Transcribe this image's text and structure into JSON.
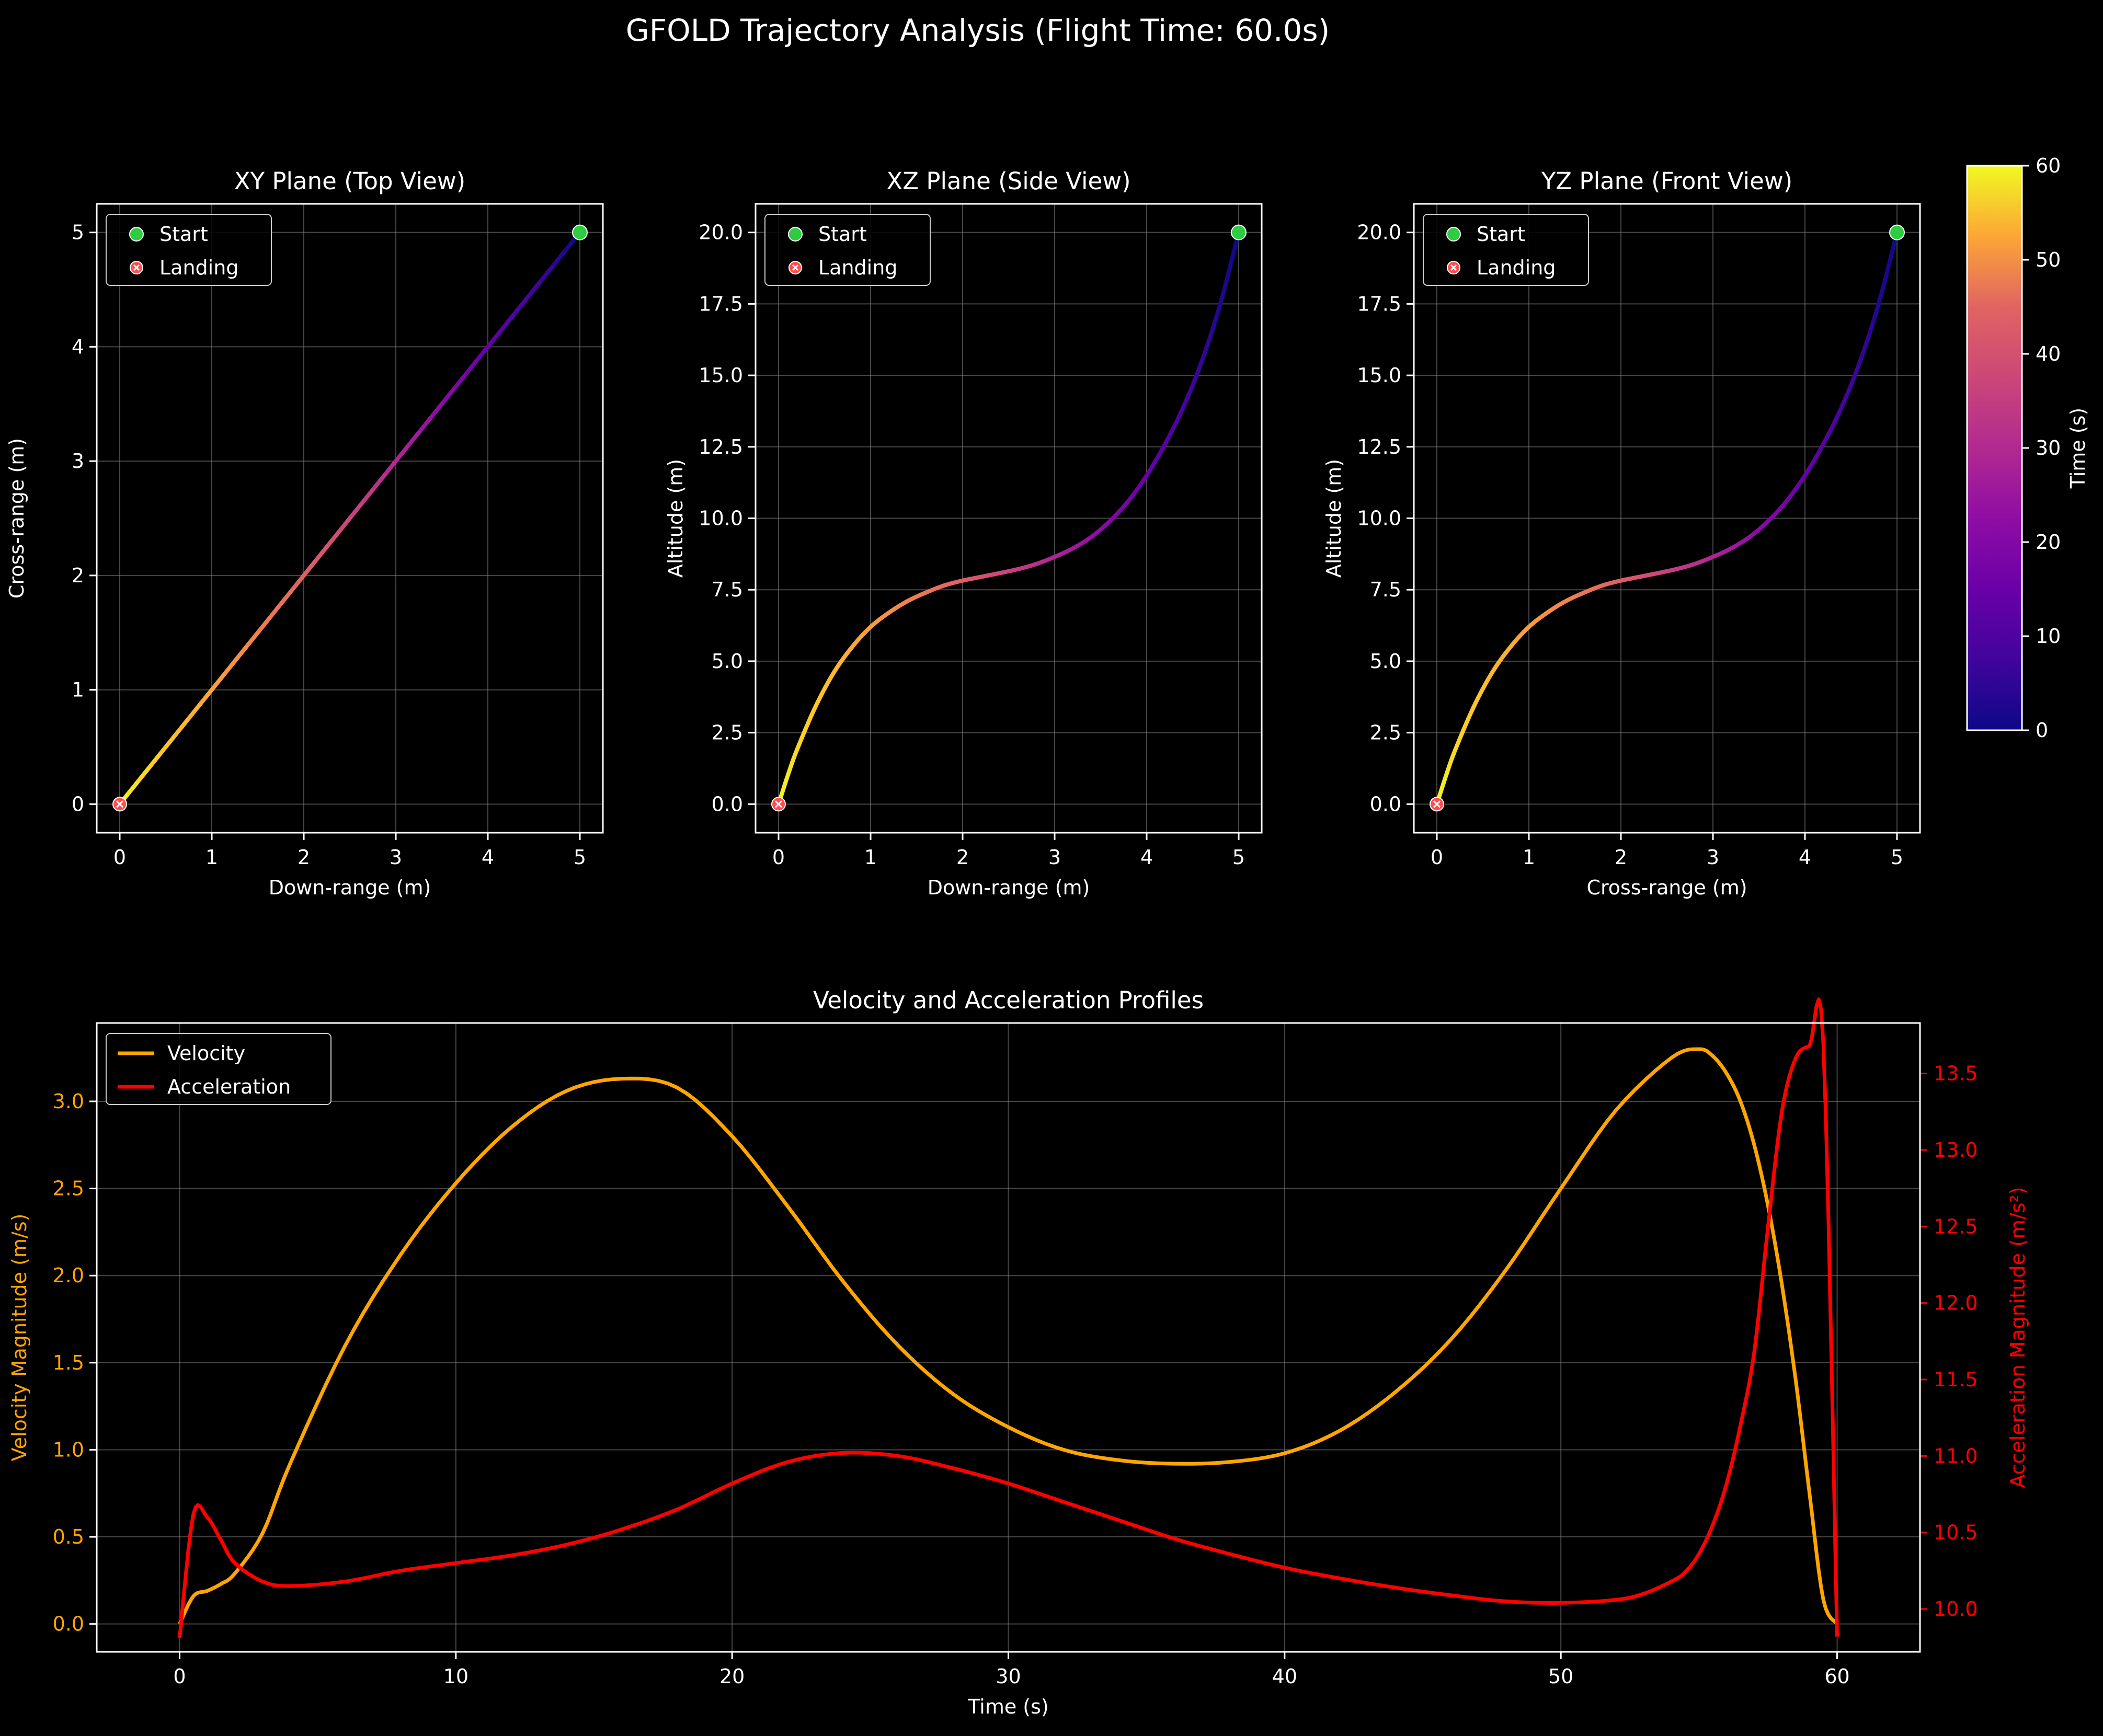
{
  "figure_title": "GFOLD Trajectory Analysis (Flight Time: 60.0s)",
  "colors": {
    "background": "#000000",
    "axes": "#ffffff",
    "grid": "#808080",
    "velocity": "#ffa500",
    "acceleration": "#ff0000",
    "start_marker": "#2ecc40",
    "landing_marker": "#ff4d4d"
  },
  "colorbar": {
    "label": "Time (s)",
    "colormap": "plasma",
    "range": [
      0,
      60
    ],
    "ticks": [
      "0",
      "10",
      "20",
      "30",
      "40",
      "50",
      "60"
    ]
  },
  "chart_data": [
    {
      "type": "line",
      "id": "xy",
      "title": "XY Plane (Top View)",
      "xlabel": "Down-range (m)",
      "ylabel": "Cross-range (m)",
      "xlim": [
        -0.25,
        5.25
      ],
      "ylim": [
        -0.25,
        5.25
      ],
      "xticks": [
        0,
        1,
        2,
        3,
        4,
        5
      ],
      "xtick_labels": [
        "0",
        "1",
        "2",
        "3",
        "4",
        "5"
      ],
      "yticks": [
        0,
        1,
        2,
        3,
        4,
        5
      ],
      "ytick_labels": [
        "0",
        "1",
        "2",
        "3",
        "4",
        "5"
      ],
      "x": [
        5,
        4,
        3,
        2,
        1,
        0
      ],
      "y": [
        5,
        4,
        3,
        2,
        1,
        0
      ],
      "color_by_time": true,
      "start": [
        5,
        5
      ],
      "landing": [
        0,
        0
      ],
      "legend": [
        "Start",
        "Landing"
      ],
      "legend_loc": "upper left",
      "grid": true
    },
    {
      "type": "line",
      "id": "xz",
      "title": "XZ Plane (Side View)",
      "xlabel": "Down-range (m)",
      "ylabel": "Altitude (m)",
      "xlim": [
        -0.25,
        5.25
      ],
      "ylim": [
        -1.0,
        21.0
      ],
      "xticks": [
        0,
        1,
        2,
        3,
        4,
        5
      ],
      "xtick_labels": [
        "0",
        "1",
        "2",
        "3",
        "4",
        "5"
      ],
      "yticks": [
        0,
        2.5,
        5,
        7.5,
        10,
        12.5,
        15,
        17.5,
        20
      ],
      "ytick_labels": [
        "0.0",
        "2.5",
        "5.0",
        "7.5",
        "10.0",
        "12.5",
        "15.0",
        "17.5",
        "20.0"
      ],
      "x": [
        5.0,
        4.8,
        4.6,
        4.4,
        4.2,
        4.0,
        3.8,
        3.6,
        3.4,
        3.2,
        3.0,
        2.8,
        2.6,
        2.4,
        2.2,
        2.0,
        1.8,
        1.6,
        1.4,
        1.2,
        1.0,
        0.8,
        0.6,
        0.4,
        0.2,
        0.1,
        0.0
      ],
      "y": [
        20.0,
        17.5,
        15.5,
        13.9,
        12.6,
        11.5,
        10.6,
        9.9,
        9.35,
        8.95,
        8.65,
        8.4,
        8.22,
        8.08,
        7.95,
        7.82,
        7.65,
        7.4,
        7.1,
        6.7,
        6.2,
        5.5,
        4.6,
        3.4,
        1.9,
        1.0,
        0.0
      ],
      "color_by_time": true,
      "start": [
        5,
        20
      ],
      "landing": [
        0,
        0
      ],
      "legend": [
        "Start",
        "Landing"
      ],
      "legend_loc": "upper left",
      "grid": true
    },
    {
      "type": "line",
      "id": "yz",
      "title": "YZ Plane (Front View)",
      "xlabel": "Cross-range (m)",
      "ylabel": "Altitude (m)",
      "xlim": [
        -0.25,
        5.25
      ],
      "ylim": [
        -1.0,
        21.0
      ],
      "xticks": [
        0,
        1,
        2,
        3,
        4,
        5
      ],
      "xtick_labels": [
        "0",
        "1",
        "2",
        "3",
        "4",
        "5"
      ],
      "yticks": [
        0,
        2.5,
        5,
        7.5,
        10,
        12.5,
        15,
        17.5,
        20
      ],
      "ytick_labels": [
        "0.0",
        "2.5",
        "5.0",
        "7.5",
        "10.0",
        "12.5",
        "15.0",
        "17.5",
        "20.0"
      ],
      "x": [
        5.0,
        4.8,
        4.6,
        4.4,
        4.2,
        4.0,
        3.8,
        3.6,
        3.4,
        3.2,
        3.0,
        2.8,
        2.6,
        2.4,
        2.2,
        2.0,
        1.8,
        1.6,
        1.4,
        1.2,
        1.0,
        0.8,
        0.6,
        0.4,
        0.2,
        0.1,
        0.0
      ],
      "y": [
        20.0,
        17.5,
        15.5,
        13.9,
        12.6,
        11.5,
        10.6,
        9.9,
        9.35,
        8.95,
        8.65,
        8.4,
        8.22,
        8.08,
        7.95,
        7.82,
        7.65,
        7.4,
        7.1,
        6.7,
        6.2,
        5.5,
        4.6,
        3.4,
        1.9,
        1.0,
        0.0
      ],
      "color_by_time": true,
      "start": [
        5,
        20
      ],
      "landing": [
        0,
        0
      ],
      "legend": [
        "Start",
        "Landing"
      ],
      "legend_loc": "upper left",
      "grid": true
    },
    {
      "type": "line",
      "id": "profiles",
      "title": "Velocity and Acceleration Profiles",
      "xlabel": "Time (s)",
      "ylabel": "Velocity Magnitude (m/s)",
      "ylabel_right": "Acceleration Magnitude (m/s²)",
      "xlim": [
        -3,
        63
      ],
      "ylim": [
        -0.16,
        3.45
      ],
      "ylim_right": [
        9.72,
        13.83
      ],
      "xticks": [
        0,
        10,
        20,
        30,
        40,
        50,
        60
      ],
      "xtick_labels": [
        "0",
        "10",
        "20",
        "30",
        "40",
        "50",
        "60"
      ],
      "yticks": [
        0,
        0.5,
        1,
        1.5,
        2,
        2.5,
        3
      ],
      "ytick_labels": [
        "0.0",
        "0.5",
        "1.0",
        "1.5",
        "2.0",
        "2.5",
        "3.0"
      ],
      "yticks_right": [
        10,
        10.5,
        11,
        11.5,
        12,
        12.5,
        13,
        13.5
      ],
      "ytick_labels_right": [
        "10.0",
        "10.5",
        "11.0",
        "11.5",
        "12.0",
        "12.5",
        "13.0",
        "13.5"
      ],
      "series": [
        {
          "name": "Velocity",
          "axis": "left",
          "x": [
            0,
            0.5,
            1,
            1.5,
            2,
            3,
            4,
            6,
            8,
            10,
            12,
            14,
            16,
            18,
            20,
            22,
            24,
            26,
            28,
            30,
            32,
            34,
            36,
            38,
            40,
            42,
            44,
            46,
            48,
            50,
            52,
            54,
            55,
            55.5,
            56,
            56.5,
            57,
            57.5,
            58,
            58.5,
            59,
            59.5,
            60
          ],
          "y": [
            0.0,
            0.16,
            0.19,
            0.23,
            0.29,
            0.52,
            0.92,
            1.6,
            2.12,
            2.53,
            2.85,
            3.06,
            3.13,
            3.08,
            2.8,
            2.4,
            1.97,
            1.6,
            1.32,
            1.13,
            1.0,
            0.94,
            0.92,
            0.93,
            0.98,
            1.11,
            1.33,
            1.63,
            2.03,
            2.5,
            2.95,
            3.25,
            3.3,
            3.26,
            3.16,
            3.0,
            2.75,
            2.4,
            1.95,
            1.4,
            0.75,
            0.14,
            0.0
          ]
        },
        {
          "name": "Acceleration",
          "axis": "right",
          "x": [
            0,
            0.5,
            1,
            1.5,
            2,
            3,
            4,
            6,
            8,
            10,
            12,
            14,
            16,
            18,
            20,
            22,
            24,
            26,
            28,
            30,
            32,
            34,
            36,
            38,
            40,
            42,
            44,
            46,
            48,
            50,
            52,
            53,
            54,
            54.5,
            55,
            55.5,
            56,
            56.5,
            57,
            57.5,
            58,
            58.5,
            59,
            59.5,
            60
          ],
          "y": [
            9.81,
            10.62,
            10.6,
            10.45,
            10.3,
            10.18,
            10.15,
            10.18,
            10.25,
            10.3,
            10.35,
            10.42,
            10.52,
            10.65,
            10.82,
            10.96,
            11.02,
            11.0,
            10.92,
            10.82,
            10.7,
            10.58,
            10.46,
            10.36,
            10.27,
            10.2,
            10.14,
            10.09,
            10.05,
            10.04,
            10.06,
            10.1,
            10.18,
            10.24,
            10.36,
            10.55,
            10.82,
            11.2,
            11.68,
            12.5,
            13.25,
            13.6,
            13.68,
            13.7,
            9.82
          ]
        }
      ],
      "legend_loc": "upper left",
      "grid": true
    }
  ]
}
